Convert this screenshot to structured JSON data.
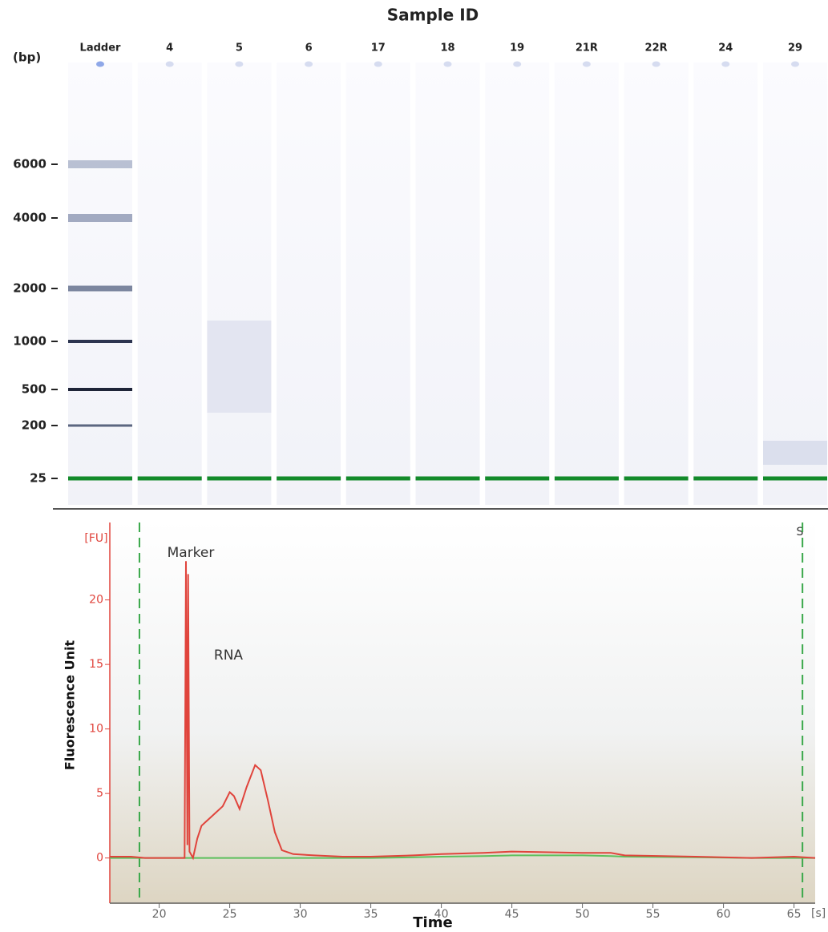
{
  "chart_data": [
    {
      "type": "gel",
      "title": "Sample ID",
      "y_label": "(bp)",
      "categories": [
        "Ladder",
        "4",
        "5",
        "6",
        "17",
        "18",
        "19",
        "21R",
        "22R",
        "24",
        "29"
      ],
      "yticks": [
        6000,
        4000,
        2000,
        1000,
        500,
        200,
        25
      ]
    },
    {
      "type": "line",
      "x_label": "Time",
      "y_label": "Fluorescence Unit",
      "y_unit": "[FU]",
      "x_unit": "[s]",
      "annotations": [
        "Marker",
        "RNA",
        "S"
      ],
      "markers": [
        18.6,
        65.6
      ],
      "marker_color": "#3aa84a",
      "x": [
        16.5,
        18,
        19,
        21.5,
        21.8,
        21.9,
        22.0,
        22.05,
        22.15,
        22.4,
        22.7,
        23,
        24,
        24.5,
        25,
        25.3,
        25.7,
        26.2,
        26.8,
        27.2,
        27.7,
        28.2,
        28.7,
        29.5,
        31,
        33,
        35,
        38,
        40,
        43,
        45,
        50,
        52,
        53,
        58,
        62,
        65,
        66.5
      ],
      "series": [
        {
          "color": "#e0443c",
          "values": [
            0.1,
            0.1,
            0,
            0,
            0,
            23,
            1,
            22,
            0.5,
            0,
            1.5,
            2.5,
            3.5,
            4.0,
            5.1,
            4.8,
            3.8,
            5.5,
            7.2,
            6.8,
            4.5,
            2,
            0.6,
            0.3,
            0.2,
            0.1,
            0.1,
            0.2,
            0.3,
            0.4,
            0.5,
            0.4,
            0.4,
            0.2,
            0.1,
            0,
            0.1,
            0
          ]
        },
        {
          "color": "#5cc05c",
          "values": [
            0,
            0,
            0,
            0,
            0,
            0,
            0,
            0,
            0,
            0,
            0,
            0,
            0,
            0,
            0,
            0,
            0,
            0,
            0,
            0,
            0,
            0,
            0,
            0,
            0,
            0,
            0,
            0.05,
            0.1,
            0.15,
            0.2,
            0.2,
            0.15,
            0.1,
            0.05,
            0,
            0,
            0
          ]
        }
      ],
      "xlim": [
        16.5,
        66.5
      ],
      "ylim": [
        -3.5,
        26
      ],
      "xticks": [
        20,
        25,
        30,
        35,
        40,
        45,
        50,
        55,
        60,
        65
      ],
      "yticks": [
        0,
        5,
        10,
        15,
        20
      ]
    }
  ]
}
